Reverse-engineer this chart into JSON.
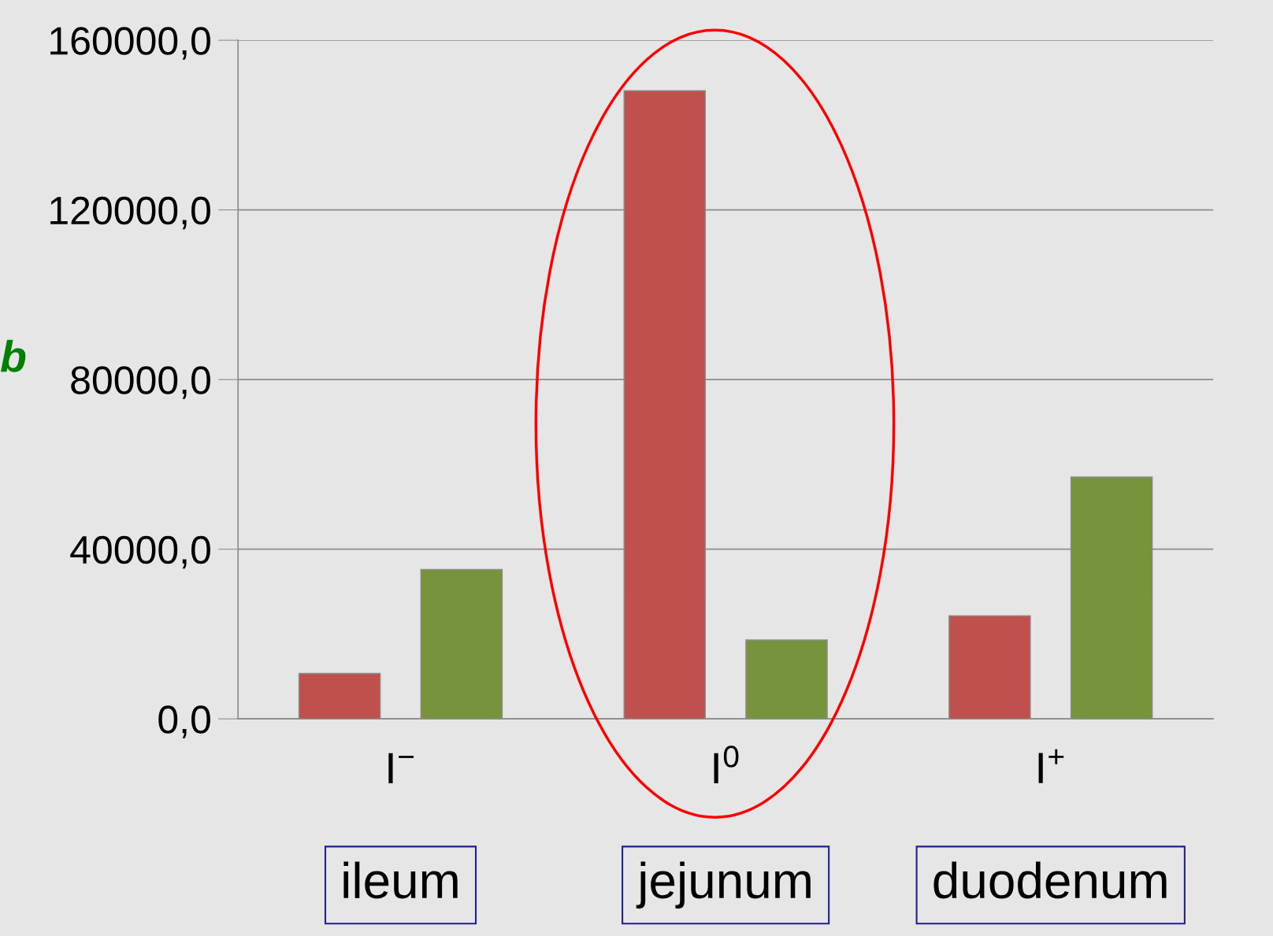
{
  "chart_data": {
    "type": "bar",
    "categories": [
      "I$^{−}$",
      "I$^{0}$",
      "I$^{+}$"
    ],
    "series": [
      {
        "color": "#c0504d",
        "values": [
          10700,
          148100,
          24300
        ]
      },
      {
        "color": "#77933c",
        "values": [
          35200,
          18600,
          57000
        ]
      }
    ],
    "ylim": [
      0,
      160000
    ],
    "yticks": [
      {
        "value": 0,
        "label": "0,0"
      },
      {
        "value": 40000,
        "label": "40000,0"
      },
      {
        "value": 80000,
        "label": "80000,0"
      },
      {
        "value": 120000,
        "label": "120000,0"
      },
      {
        "value": 160000,
        "label": "160000,0"
      }
    ],
    "grid": "y",
    "annotations": [
      "b",
      "ileum",
      "jejunum",
      "duodenum"
    ]
  }
}
